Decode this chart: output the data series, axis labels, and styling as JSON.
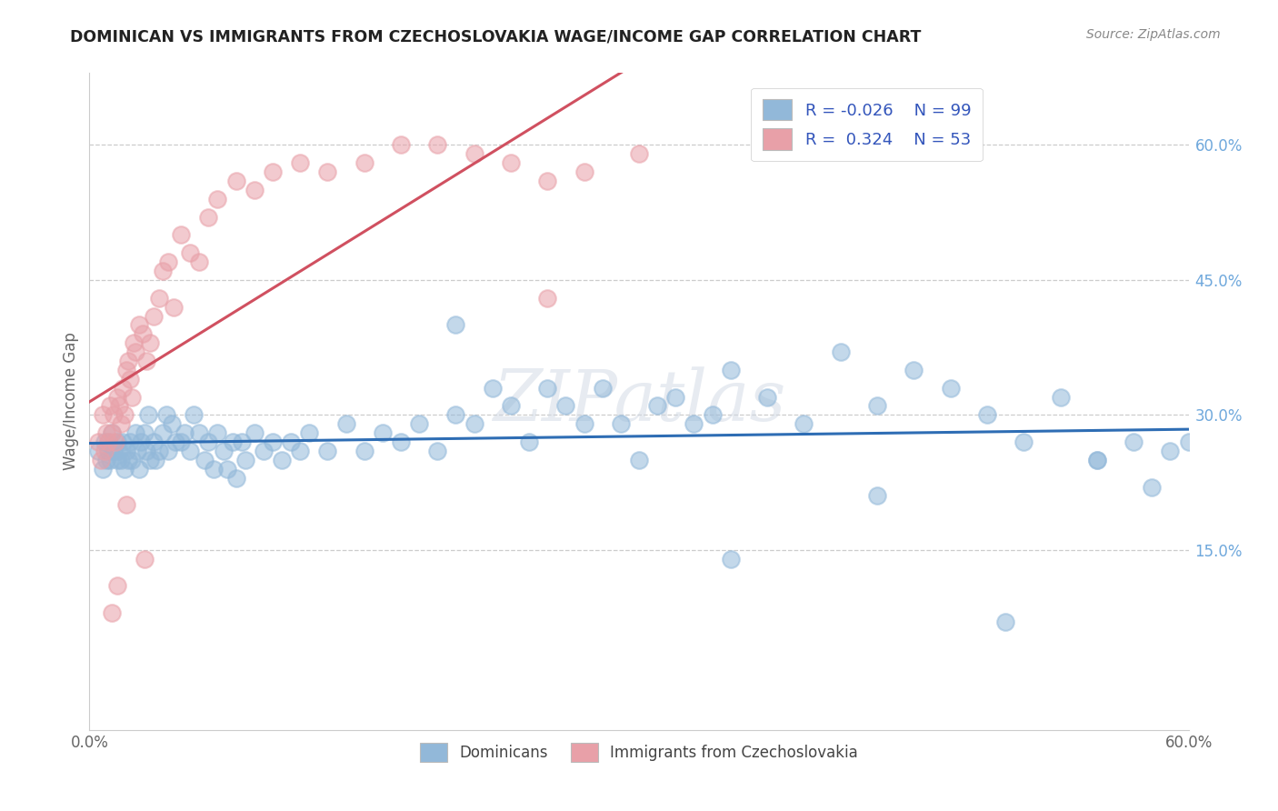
{
  "title": "DOMINICAN VS IMMIGRANTS FROM CZECHOSLOVAKIA WAGE/INCOME GAP CORRELATION CHART",
  "source": "Source: ZipAtlas.com",
  "ylabel": "Wage/Income Gap",
  "ytick_labels": [
    "15.0%",
    "30.0%",
    "45.0%",
    "60.0%"
  ],
  "ytick_values": [
    0.15,
    0.3,
    0.45,
    0.6
  ],
  "xlim": [
    0.0,
    0.6
  ],
  "ylim": [
    -0.05,
    0.68
  ],
  "legend_r1": "R = -0.026",
  "legend_n1": "N = 99",
  "legend_r2": "R =  0.324",
  "legend_n2": "N = 53",
  "color_blue": "#92b8d9",
  "color_blue_line": "#2e6db4",
  "color_pink": "#e8a0a8",
  "color_pink_line": "#d05060",
  "watermark": "ZIPatlas",
  "blue_x": [
    0.005,
    0.007,
    0.008,
    0.009,
    0.01,
    0.01,
    0.011,
    0.012,
    0.013,
    0.015,
    0.015,
    0.016,
    0.017,
    0.018,
    0.019,
    0.02,
    0.021,
    0.022,
    0.023,
    0.025,
    0.026,
    0.027,
    0.028,
    0.03,
    0.031,
    0.032,
    0.033,
    0.035,
    0.036,
    0.038,
    0.04,
    0.042,
    0.043,
    0.045,
    0.047,
    0.05,
    0.052,
    0.055,
    0.057,
    0.06,
    0.063,
    0.065,
    0.068,
    0.07,
    0.073,
    0.075,
    0.078,
    0.08,
    0.083,
    0.085,
    0.09,
    0.095,
    0.1,
    0.105,
    0.11,
    0.115,
    0.12,
    0.13,
    0.14,
    0.15,
    0.16,
    0.17,
    0.18,
    0.19,
    0.2,
    0.21,
    0.22,
    0.23,
    0.24,
    0.25,
    0.26,
    0.27,
    0.28,
    0.29,
    0.3,
    0.31,
    0.32,
    0.33,
    0.34,
    0.35,
    0.37,
    0.39,
    0.41,
    0.43,
    0.45,
    0.47,
    0.49,
    0.51,
    0.53,
    0.55,
    0.57,
    0.59,
    0.43,
    0.5,
    0.55,
    0.58,
    0.6,
    0.35,
    0.2
  ],
  "blue_y": [
    0.26,
    0.24,
    0.27,
    0.25,
    0.27,
    0.26,
    0.25,
    0.28,
    0.26,
    0.27,
    0.25,
    0.26,
    0.25,
    0.27,
    0.24,
    0.26,
    0.25,
    0.27,
    0.25,
    0.28,
    0.26,
    0.24,
    0.27,
    0.28,
    0.26,
    0.3,
    0.25,
    0.27,
    0.25,
    0.26,
    0.28,
    0.3,
    0.26,
    0.29,
    0.27,
    0.27,
    0.28,
    0.26,
    0.3,
    0.28,
    0.25,
    0.27,
    0.24,
    0.28,
    0.26,
    0.24,
    0.27,
    0.23,
    0.27,
    0.25,
    0.28,
    0.26,
    0.27,
    0.25,
    0.27,
    0.26,
    0.28,
    0.26,
    0.29,
    0.26,
    0.28,
    0.27,
    0.29,
    0.26,
    0.3,
    0.29,
    0.33,
    0.31,
    0.27,
    0.33,
    0.31,
    0.29,
    0.33,
    0.29,
    0.25,
    0.31,
    0.32,
    0.29,
    0.3,
    0.35,
    0.32,
    0.29,
    0.37,
    0.31,
    0.35,
    0.33,
    0.3,
    0.27,
    0.32,
    0.25,
    0.27,
    0.26,
    0.21,
    0.07,
    0.25,
    0.22,
    0.27,
    0.14,
    0.4
  ],
  "pink_x": [
    0.005,
    0.006,
    0.007,
    0.008,
    0.009,
    0.01,
    0.011,
    0.012,
    0.013,
    0.014,
    0.015,
    0.016,
    0.017,
    0.018,
    0.019,
    0.02,
    0.021,
    0.022,
    0.023,
    0.024,
    0.025,
    0.027,
    0.029,
    0.031,
    0.033,
    0.035,
    0.038,
    0.04,
    0.043,
    0.046,
    0.05,
    0.055,
    0.06,
    0.065,
    0.07,
    0.08,
    0.09,
    0.1,
    0.115,
    0.13,
    0.15,
    0.17,
    0.19,
    0.21,
    0.23,
    0.25,
    0.27,
    0.3,
    0.012,
    0.015,
    0.02,
    0.03,
    0.25
  ],
  "pink_y": [
    0.27,
    0.25,
    0.3,
    0.26,
    0.28,
    0.27,
    0.31,
    0.28,
    0.3,
    0.27,
    0.32,
    0.31,
    0.29,
    0.33,
    0.3,
    0.35,
    0.36,
    0.34,
    0.32,
    0.38,
    0.37,
    0.4,
    0.39,
    0.36,
    0.38,
    0.41,
    0.43,
    0.46,
    0.47,
    0.42,
    0.5,
    0.48,
    0.47,
    0.52,
    0.54,
    0.56,
    0.55,
    0.57,
    0.58,
    0.57,
    0.58,
    0.6,
    0.6,
    0.59,
    0.58,
    0.56,
    0.57,
    0.59,
    0.08,
    0.11,
    0.2,
    0.14,
    0.43
  ]
}
